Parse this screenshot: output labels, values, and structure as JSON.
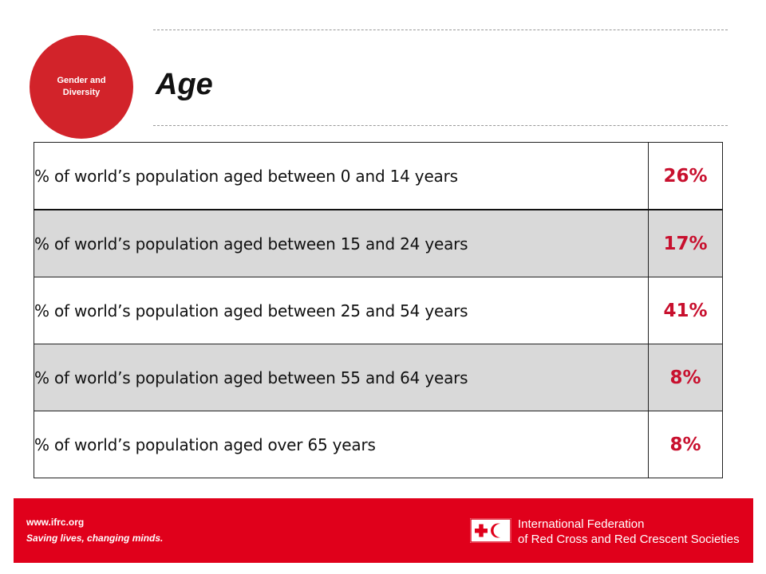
{
  "badge": {
    "line1": "Gender and",
    "line2": "Diversity"
  },
  "slide": {
    "title": "Age"
  },
  "table": {
    "rows": [
      {
        "label": "% of world’s population aged between 0 and 14 years",
        "value": "26%"
      },
      {
        "label": "% of world’s population aged between 15 and 24 years",
        "value": "17%"
      },
      {
        "label": "% of world’s population aged between 25 and 54 years",
        "value": "41%"
      },
      {
        "label": "% of world’s population aged between 55 and 64 years",
        "value": "8%"
      },
      {
        "label": "% of world’s population aged over 65 years",
        "value": "8%"
      }
    ]
  },
  "footer": {
    "url": "www.ifrc.org",
    "tagline": "Saving lives, changing minds.",
    "org_line1": "International Federation",
    "org_line2": "of Red Cross and Red Crescent Societies"
  },
  "colors": {
    "accent_red": "#d2232a",
    "footer_red": "#e0001b",
    "value_red": "#c8102e",
    "row_shade": "#d9d9d9"
  }
}
